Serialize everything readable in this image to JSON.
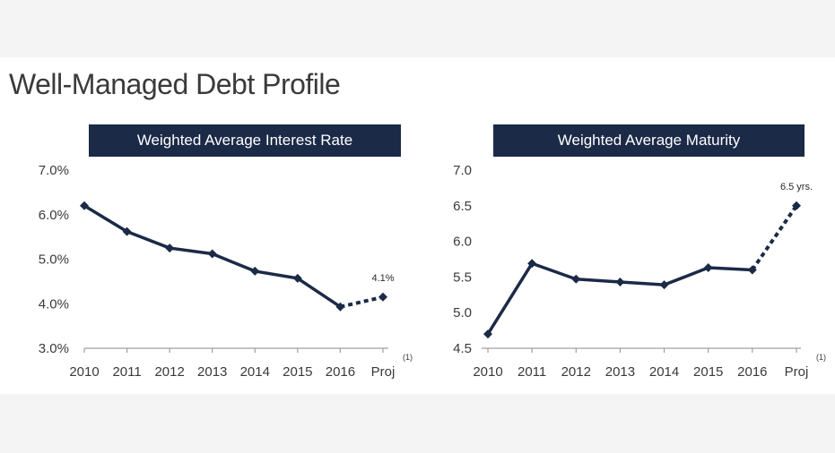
{
  "title": "Well-Managed Debt Profile",
  "colors": {
    "line": "#1b2a47",
    "header_bg": "#1b2a47",
    "axis": "#a0a0a0"
  },
  "chart_data": [
    {
      "type": "line",
      "title": "Weighted Average Interest Rate",
      "categories": [
        "2010",
        "2011",
        "2012",
        "2013",
        "2014",
        "2015",
        "2016",
        "Proj"
      ],
      "footnote": "(1)",
      "values": [
        6.2,
        5.62,
        5.25,
        5.12,
        4.73,
        4.57,
        3.93,
        4.15
      ],
      "projection_from_index": 6,
      "ylim": [
        3.0,
        7.0
      ],
      "yticks": [
        "3.0%",
        "4.0%",
        "5.0%",
        "6.0%",
        "7.0%"
      ],
      "ytick_values": [
        3.0,
        4.0,
        5.0,
        6.0,
        7.0
      ],
      "data_labels": [
        {
          "index": 7,
          "text": "4.1%"
        }
      ],
      "grid": false
    },
    {
      "type": "line",
      "title": "Weighted Average Maturity",
      "categories": [
        "2010",
        "2011",
        "2012",
        "2013",
        "2014",
        "2015",
        "2016",
        "Proj"
      ],
      "footnote": "(1)",
      "values": [
        4.7,
        5.69,
        5.47,
        5.43,
        5.39,
        5.63,
        5.6,
        6.5
      ],
      "projection_from_index": 6,
      "ylim": [
        4.5,
        7.0
      ],
      "yticks": [
        "4.5",
        "5.0",
        "5.5",
        "6.0",
        "6.5",
        "7.0"
      ],
      "ytick_values": [
        4.5,
        5.0,
        5.5,
        6.0,
        6.5,
        7.0
      ],
      "data_labels": [
        {
          "index": 7,
          "text": "6.5 yrs."
        }
      ],
      "grid": false
    }
  ]
}
